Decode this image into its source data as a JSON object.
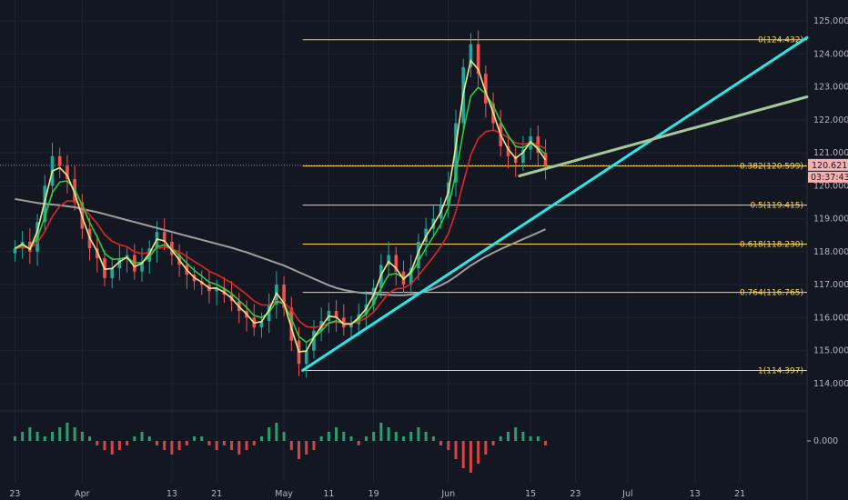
{
  "chart_data": {
    "type": "line",
    "instrument_hint": "candlestick price chart with indicators",
    "colors": {
      "background": "#131722",
      "grid": "#1f2433",
      "ema_fast": "#f0e68c",
      "ema_mid": "#2ecc40",
      "ema_slow": "#e02424",
      "sma_long": "#9e9e9e",
      "trend_up": "#29e6e6",
      "trend_gray": "#a5c89a",
      "fib": "#ffd54f",
      "candle_up": "#26a69a",
      "candle_down": "#ef5350",
      "hist_up": "#2e9e6f",
      "hist_down": "#d64545",
      "price_tag_bg": "#f7b0b0"
    },
    "x_labels": [
      {
        "label": "23",
        "x": 0
      },
      {
        "label": "Apr",
        "x": 9
      },
      {
        "label": "13",
        "x": 21
      },
      {
        "label": "21",
        "x": 27
      },
      {
        "label": "May",
        "x": 36
      },
      {
        "label": "11",
        "x": 42
      },
      {
        "label": "19",
        "x": 48
      },
      {
        "label": "Jun",
        "x": 58
      },
      {
        "label": "15",
        "x": 69
      },
      {
        "label": "23",
        "x": 75
      },
      {
        "label": "Jul",
        "x": 82
      },
      {
        "label": "13",
        "x": 91
      },
      {
        "label": "21",
        "x": 97
      }
    ],
    "x_range": [
      -2,
      106
    ],
    "y_range": [
      113.5,
      125.5
    ],
    "y_ticks": [
      "125.000",
      "124.000",
      "123.000",
      "122.000",
      "121.000",
      "120.000",
      "119.000",
      "118.000",
      "117.000",
      "116.000",
      "115.000",
      "114.000"
    ],
    "current_price": {
      "value": 120.621,
      "label": "120.621",
      "countdown": "03:37:43"
    },
    "fib_levels": [
      {
        "ratio": "0",
        "value": 124.432,
        "label": "0(124.432)"
      },
      {
        "ratio": "0.382",
        "value": 120.599,
        "label": "0.382(120.599)"
      },
      {
        "ratio": "0.5",
        "value": 119.415,
        "label": "0.5(119.415)"
      },
      {
        "ratio": "0.618",
        "value": 118.23,
        "label": "0.618(118.230)"
      },
      {
        "ratio": "0.764",
        "value": 116.765,
        "label": "0.764(116.765)"
      },
      {
        "ratio": "1",
        "value": 114.397,
        "label": "1(114.397)"
      }
    ],
    "fib_x_start": 38.5,
    "trendlines": [
      {
        "name": "cyan-rising",
        "x1": 38.5,
        "y1": 114.4,
        "x2": 106,
        "y2": 124.5
      },
      {
        "name": "gray-rising",
        "x1": 67.5,
        "y1": 120.3,
        "x2": 106,
        "y2": 122.7
      }
    ],
    "closes": [
      118.1,
      118.3,
      118.0,
      118.9,
      120.0,
      120.9,
      120.6,
      120.2,
      119.5,
      118.7,
      118.1,
      117.8,
      117.2,
      117.5,
      117.8,
      117.9,
      117.4,
      117.7,
      118.1,
      118.6,
      118.3,
      117.9,
      117.6,
      117.3,
      117.1,
      117.0,
      116.8,
      116.9,
      116.7,
      116.5,
      116.2,
      116.0,
      115.7,
      115.9,
      116.4,
      117.0,
      116.3,
      115.3,
      114.6,
      115.0,
      115.6,
      115.9,
      116.2,
      116.0,
      115.7,
      115.8,
      116.1,
      116.4,
      116.9,
      117.6,
      117.9,
      117.4,
      117.0,
      117.5,
      118.3,
      118.7,
      119.0,
      119.4,
      120.1,
      121.9,
      123.6,
      124.3,
      123.4,
      122.5,
      121.9,
      121.2,
      120.9,
      120.7,
      121.1,
      121.5,
      121.0,
      120.62
    ],
    "sma_long": [
      119.6,
      119.56,
      119.52,
      119.48,
      119.45,
      119.43,
      119.41,
      119.38,
      119.35,
      119.3,
      119.25,
      119.2,
      119.14,
      119.08,
      119.02,
      118.96,
      118.9,
      118.84,
      118.78,
      118.72,
      118.66,
      118.6,
      118.54,
      118.48,
      118.42,
      118.36,
      118.3,
      118.24,
      118.18,
      118.12,
      118.05,
      117.98,
      117.9,
      117.82,
      117.74,
      117.66,
      117.58,
      117.48,
      117.38,
      117.28,
      117.18,
      117.08,
      116.98,
      116.9,
      116.84,
      116.8,
      116.76,
      116.74,
      116.72,
      116.7,
      116.69,
      116.68,
      116.68,
      116.7,
      116.74,
      116.8,
      116.88,
      116.98,
      117.1,
      117.25,
      117.42,
      117.58,
      117.72,
      117.85,
      117.97,
      118.08,
      118.18,
      118.28,
      118.38,
      118.48,
      118.58,
      118.68
    ],
    "histogram": [
      1,
      2,
      3,
      2,
      1,
      2,
      3,
      4,
      3,
      2,
      1,
      -1,
      -2,
      -3,
      -2,
      -1,
      1,
      2,
      1,
      -1,
      -2,
      -3,
      -2,
      -1,
      1,
      1,
      -1,
      -2,
      -1,
      -2,
      -3,
      -2,
      -1,
      1,
      3,
      4,
      2,
      -2,
      -4,
      -3,
      -2,
      1,
      2,
      3,
      2,
      1,
      -1,
      1,
      2,
      4,
      3,
      2,
      1,
      2,
      3,
      2,
      1,
      -1,
      -2,
      -4,
      -6,
      -7,
      -5,
      -3,
      -1,
      1,
      2,
      3,
      2,
      1,
      1,
      -1
    ],
    "histogram_zero_label": "0.000"
  }
}
